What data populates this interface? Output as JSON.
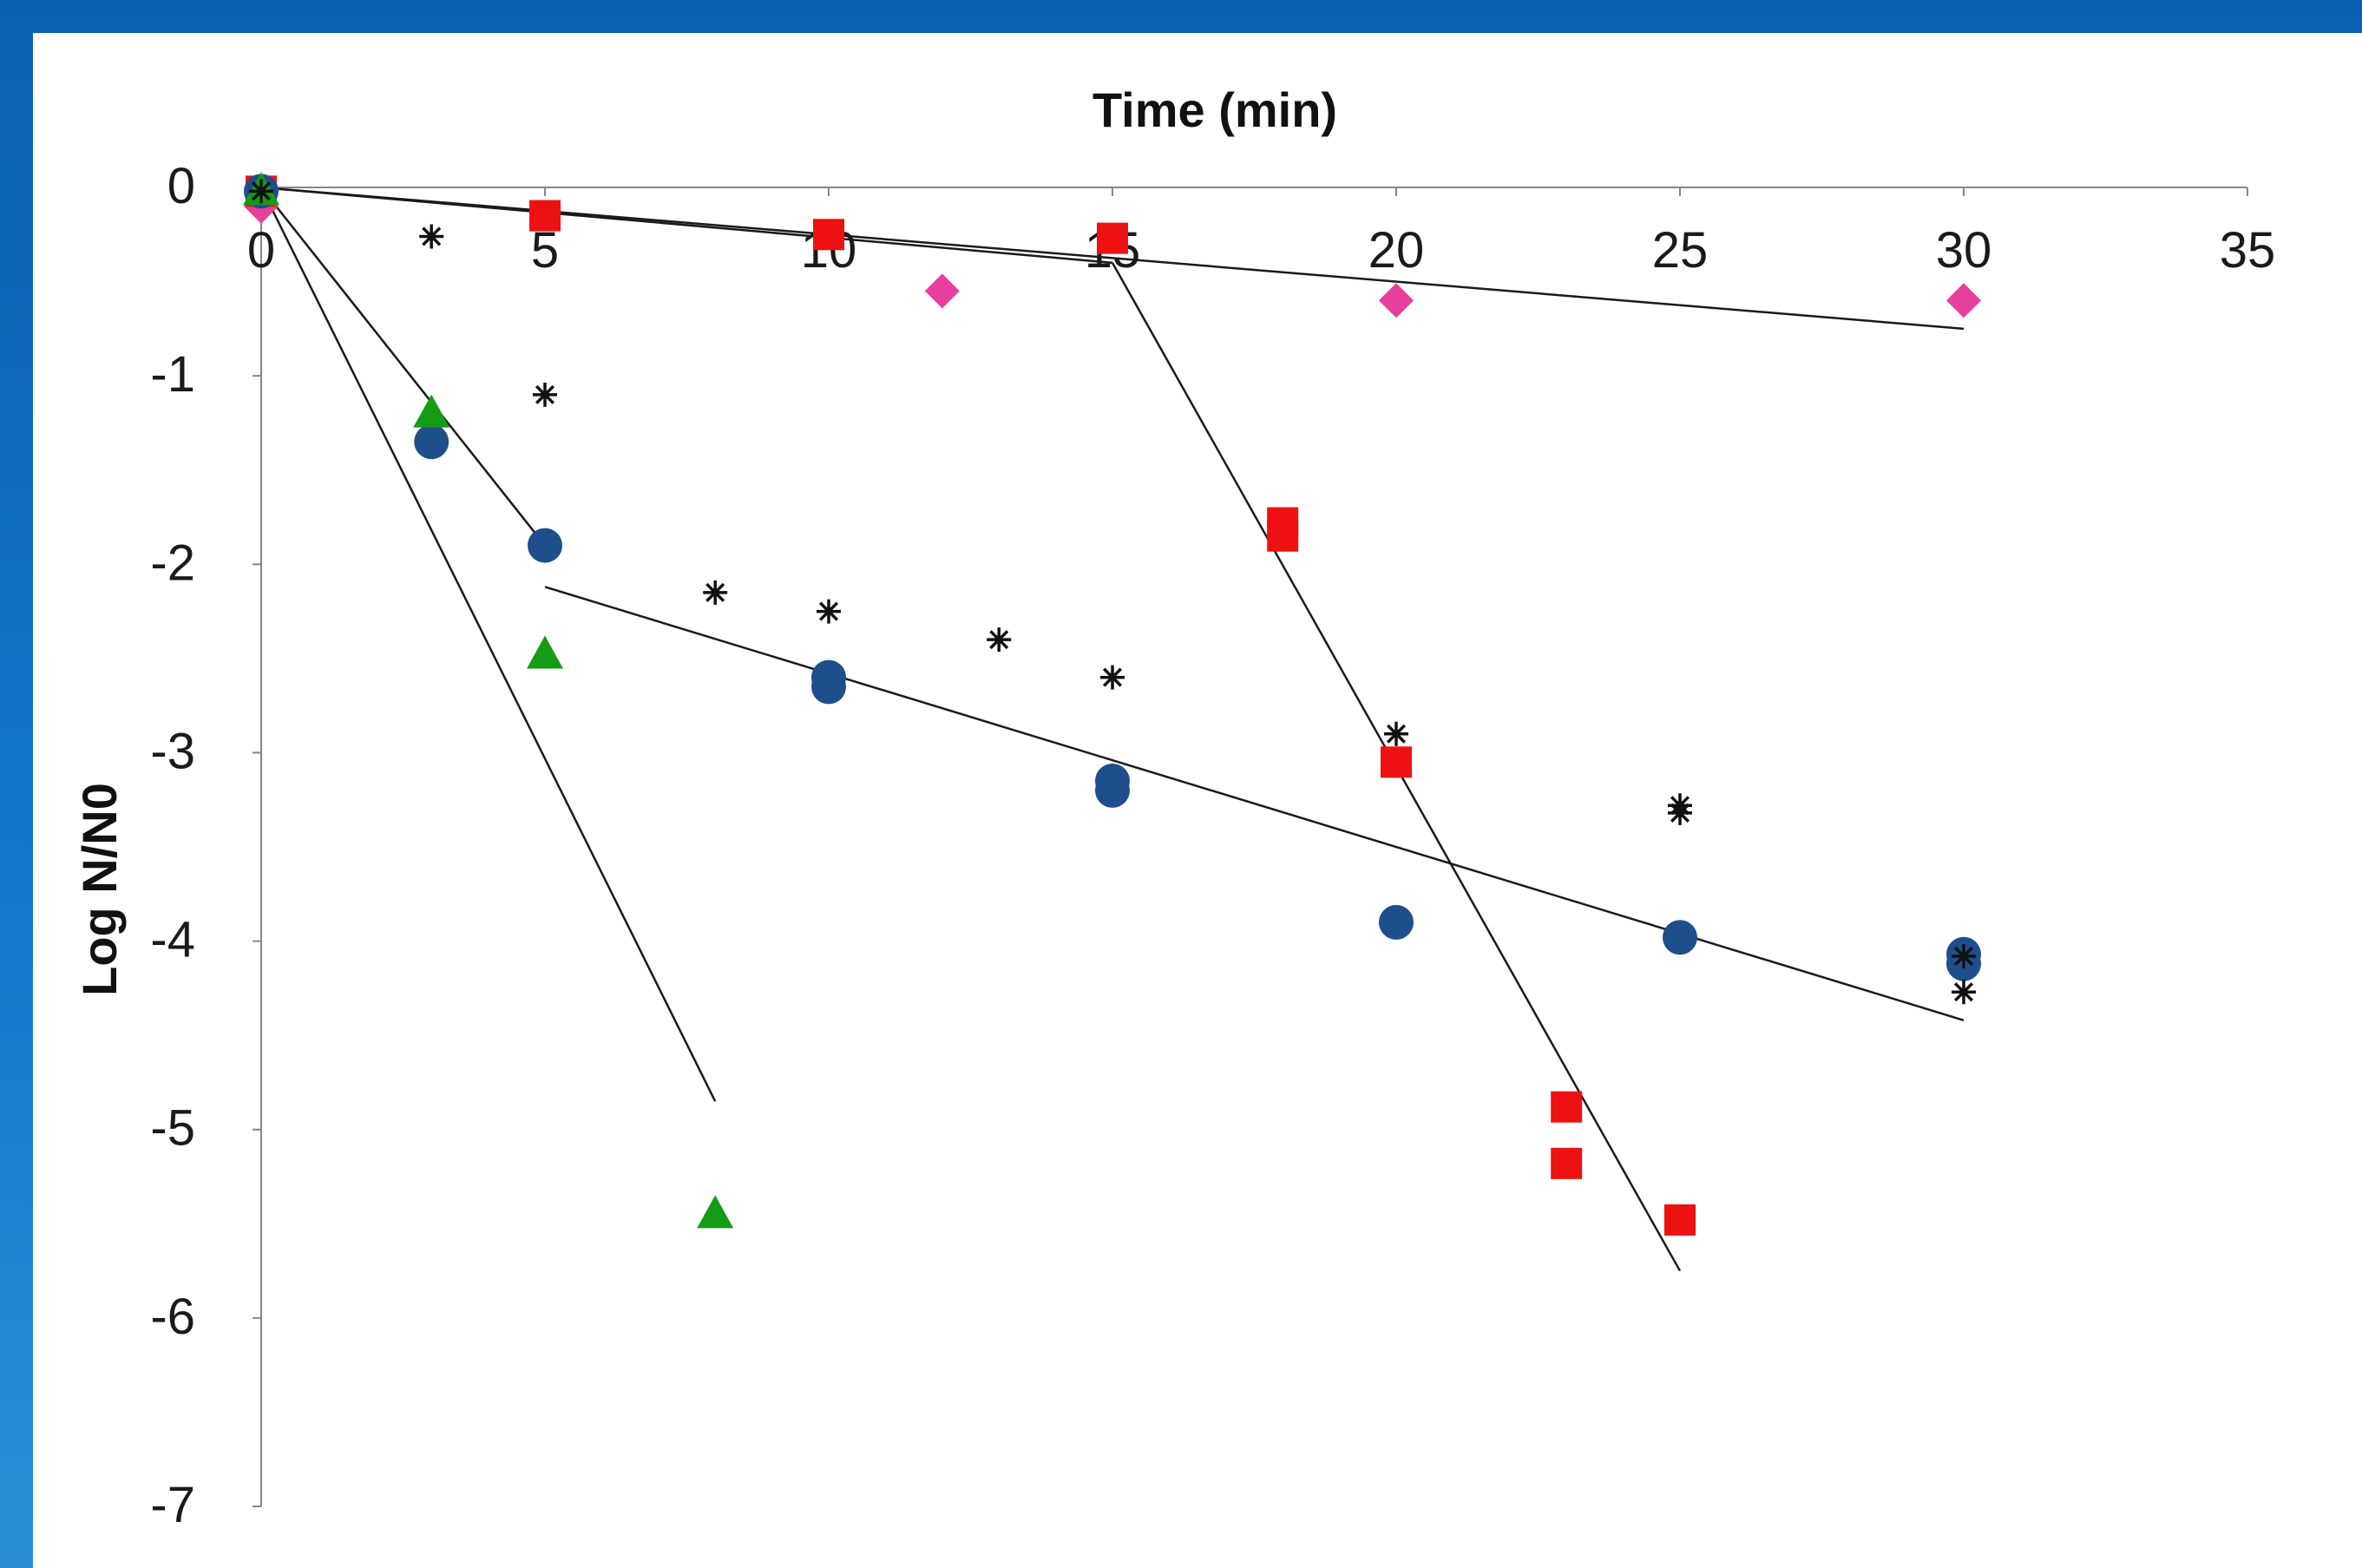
{
  "chart_data": {
    "type": "scatter",
    "title": "",
    "xlabel": "Time (min)",
    "ylabel": "Log N/N0",
    "xlim": [
      0,
      35
    ],
    "ylim": [
      -7,
      0
    ],
    "x_ticks": [
      0,
      5,
      10,
      15,
      20,
      25,
      30,
      35
    ],
    "y_ticks": [
      0,
      -1,
      -2,
      -3,
      -4,
      -5,
      -6,
      -7
    ],
    "x_axis_position": "top",
    "grid": false,
    "legend": "none",
    "series": [
      {
        "marker": "diamond",
        "color": "#e83e9c",
        "points": [
          [
            0,
            -0.1
          ],
          [
            12,
            -0.55
          ],
          [
            20,
            -0.6
          ],
          [
            30,
            -0.6
          ]
        ]
      },
      {
        "marker": "square",
        "color": "#ee1111",
        "points": [
          [
            0,
            -0.02
          ],
          [
            5,
            -0.15
          ],
          [
            10,
            -0.25
          ],
          [
            15,
            -0.27
          ],
          [
            18,
            -1.78
          ],
          [
            18,
            -1.85
          ],
          [
            20,
            -3.05
          ],
          [
            23,
            -4.88
          ],
          [
            23,
            -5.18
          ],
          [
            25,
            -5.48
          ]
        ]
      },
      {
        "marker": "circle",
        "color": "#1f4e8c",
        "points": [
          [
            0,
            -0.02
          ],
          [
            3,
            -1.35
          ],
          [
            5,
            -1.9
          ],
          [
            10,
            -2.6
          ],
          [
            10,
            -2.65
          ],
          [
            15,
            -3.15
          ],
          [
            15,
            -3.2
          ],
          [
            20,
            -3.9
          ],
          [
            25,
            -3.98
          ],
          [
            30,
            -4.07
          ],
          [
            30,
            -4.12
          ]
        ]
      },
      {
        "marker": "triangle",
        "color": "#169b16",
        "points": [
          [
            0,
            -0.02
          ],
          [
            3,
            -1.2
          ],
          [
            5,
            -2.48
          ],
          [
            8,
            -5.45
          ]
        ]
      },
      {
        "marker": "asterisk",
        "color": "#111111",
        "points": [
          [
            0,
            -0.02
          ],
          [
            3,
            -0.26
          ],
          [
            5,
            -1.1
          ],
          [
            8,
            -2.15
          ],
          [
            10,
            -2.25
          ],
          [
            13,
            -2.4
          ],
          [
            15,
            -2.6
          ],
          [
            20,
            -2.9
          ],
          [
            25,
            -3.28
          ],
          [
            25,
            -3.32
          ],
          [
            30,
            -4.08
          ],
          [
            30,
            -4.27
          ]
        ]
      }
    ],
    "trendlines": [
      {
        "from": [
          0,
          0
        ],
        "to": [
          30,
          -0.75
        ]
      },
      {
        "from": [
          0,
          0
        ],
        "to": [
          15,
          -0.4
        ]
      },
      {
        "from": [
          15,
          -0.4
        ],
        "to": [
          25,
          -5.75
        ]
      },
      {
        "from": [
          0,
          0
        ],
        "to": [
          5,
          -1.9
        ]
      },
      {
        "from": [
          5,
          -2.12
        ],
        "to": [
          30,
          -4.42
        ]
      },
      {
        "from": [
          0,
          0
        ],
        "to": [
          8,
          -4.85
        ]
      }
    ]
  }
}
